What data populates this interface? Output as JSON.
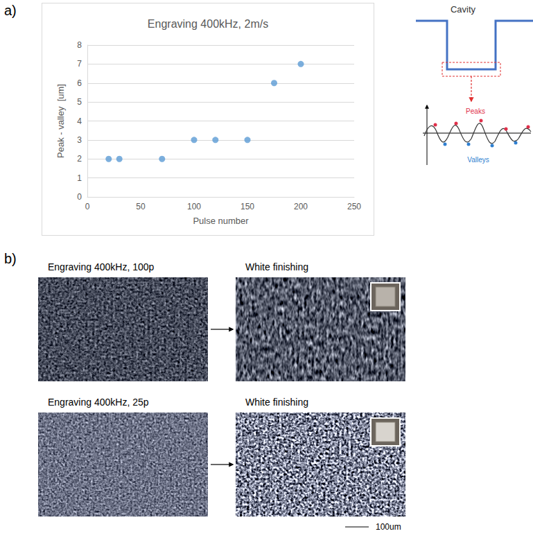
{
  "chart_data": {
    "type": "scatter",
    "title": "Engraving 400kHz, 2m/s",
    "x_label": "Pulse number",
    "y_label": "Peak - valley  [um]",
    "x": [
      20,
      30,
      70,
      100,
      120,
      150,
      175,
      200
    ],
    "values": [
      2,
      2,
      2,
      3,
      3,
      3,
      6,
      7
    ],
    "color": "#5b9bd5",
    "xlim": [
      0,
      250
    ],
    "xticks": [
      0,
      50,
      100,
      150,
      200,
      250
    ],
    "ylim": [
      0,
      8
    ],
    "yticks": [
      0,
      1,
      2,
      3,
      4,
      5,
      6,
      7,
      8
    ],
    "grid": true
  },
  "figure": {
    "panel_a": {
      "label": "a)",
      "schematic": {
        "title": "Cavity",
        "peaks": "Peaks",
        "valleys": "Valleys"
      }
    },
    "panel_b": {
      "label": "b)",
      "rows": [
        {
          "before": "Engraving 400kHz, 100p",
          "after": "White finishing"
        },
        {
          "before": "Engraving 400kHz, 25p",
          "after": "White finishing"
        }
      ],
      "scale_bar": "100um"
    }
  }
}
